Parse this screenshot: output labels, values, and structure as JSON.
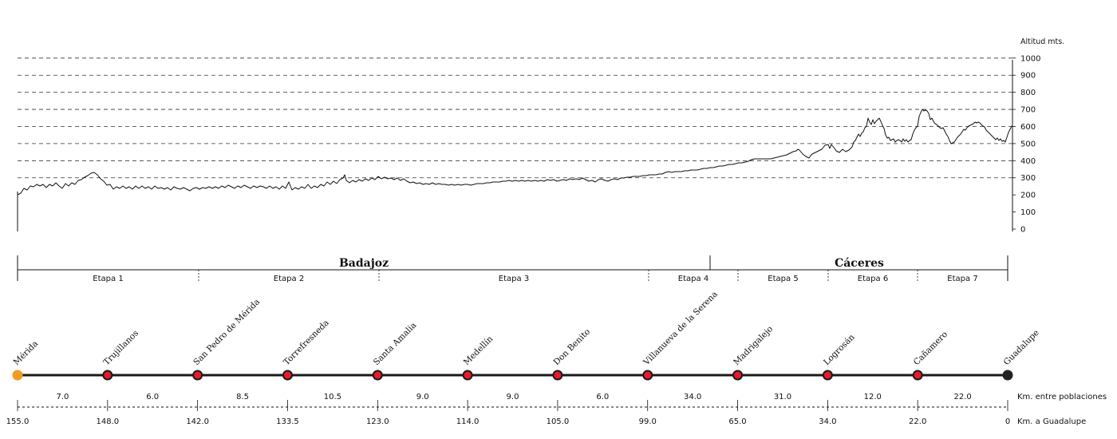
{
  "altitude_chart": {
    "axis_label": "Altitud mts.",
    "ticks": [
      0,
      100,
      200,
      300,
      400,
      500,
      600,
      700,
      800,
      900,
      1000
    ]
  },
  "provinces": [
    {
      "name": "Badajoz"
    },
    {
      "name": "Cáceres"
    }
  ],
  "stages": [
    "Etapa 1",
    "Etapa 2",
    "Etapa 3",
    "Etapa 4",
    "Etapa 5",
    "Etapa 6",
    "Etapa 7"
  ],
  "towns": [
    {
      "name": "Mérida",
      "km_to_end": "155.0",
      "status": "start"
    },
    {
      "name": "Trujillanos",
      "km_to_end": "148.0",
      "status": "mid"
    },
    {
      "name": "San Pedro de Mérida",
      "km_to_end": "142.0",
      "status": "mid"
    },
    {
      "name": "Torrefresneda",
      "km_to_end": "133.5",
      "status": "mid"
    },
    {
      "name": "Santa Amalia",
      "km_to_end": "123.0",
      "status": "mid"
    },
    {
      "name": "Medellín",
      "km_to_end": "114.0",
      "status": "mid"
    },
    {
      "name": "Don Benito",
      "km_to_end": "105.0",
      "status": "mid"
    },
    {
      "name": "Villanueva de la Serena",
      "km_to_end": "99.0",
      "status": "mid"
    },
    {
      "name": "Madrigalejo",
      "km_to_end": "65.0",
      "status": "mid"
    },
    {
      "name": "Logrosán",
      "km_to_end": "34.0",
      "status": "mid"
    },
    {
      "name": "Cañamero",
      "km_to_end": "22.0",
      "status": "mid"
    },
    {
      "name": "Guadalupe",
      "km_to_end": "0",
      "status": "end"
    }
  ],
  "segment_distances": [
    "7.0",
    "6.0",
    "8.5",
    "10.5",
    "9.0",
    "9.0",
    "6.0",
    "34.0",
    "31.0",
    "12.0",
    "22.0"
  ],
  "labels": {
    "km_between": "Km. entre poblaciones",
    "km_to_end": "Km. a Guadalupe"
  },
  "colors": {
    "start": "#f39a25",
    "mid": "#e8192c",
    "end": "#222222",
    "route": "#1a1a1a"
  }
}
